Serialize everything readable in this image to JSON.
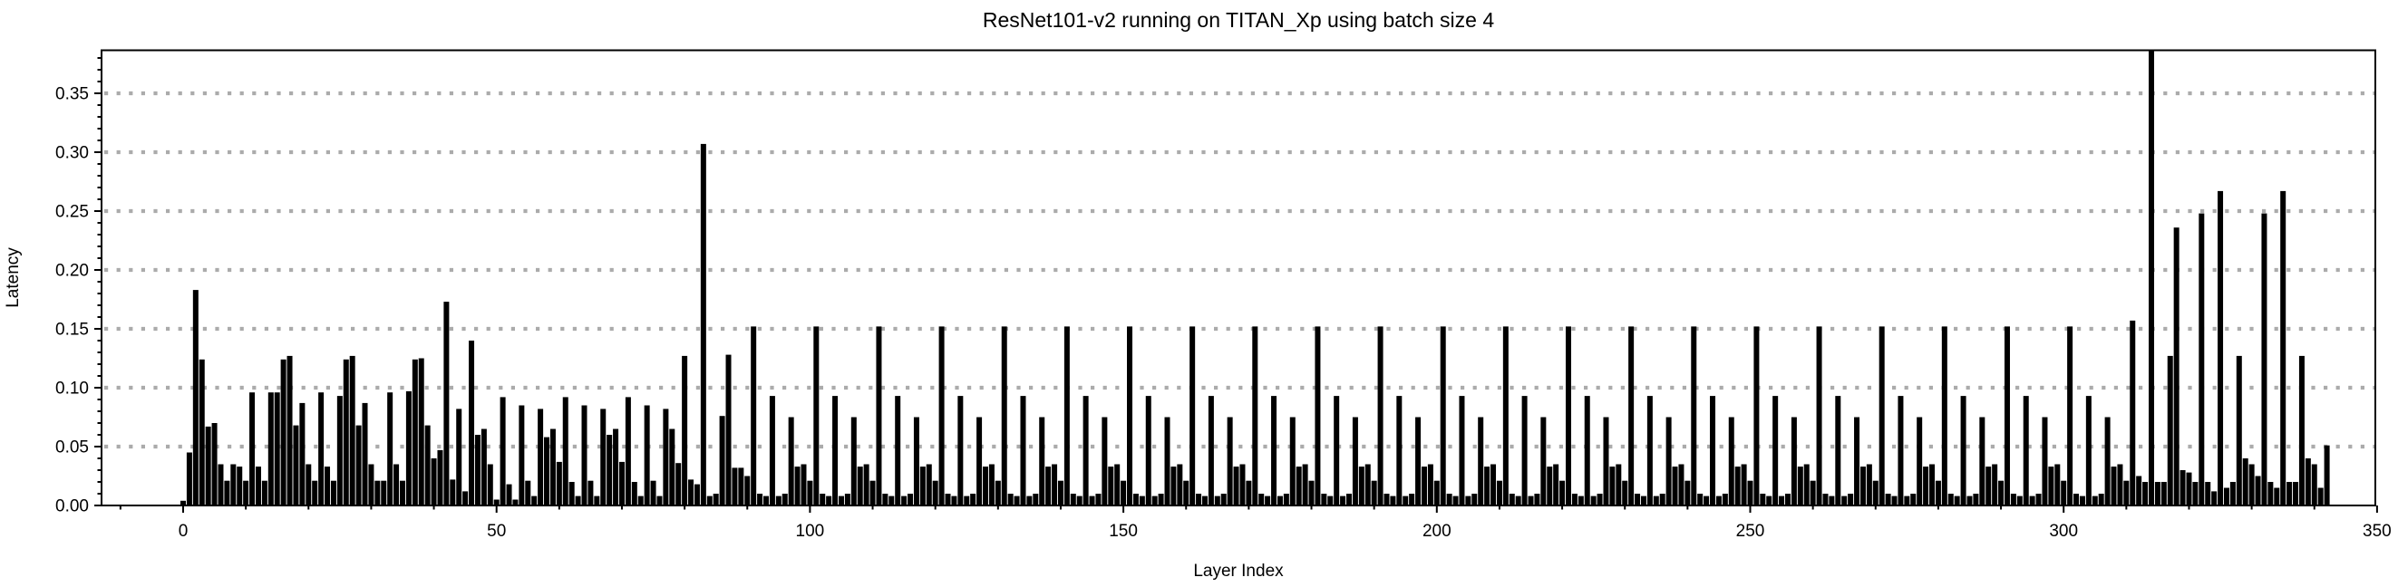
{
  "chart_data": {
    "type": "bar",
    "title": "ResNet101-v2 running on TITAN_Xp using batch size 4",
    "xlabel": "Layer Index",
    "ylabel": "Latency",
    "xlim": [
      -13,
      350.5
    ],
    "ylim": [
      0,
      0.3865
    ],
    "x_ticks": [
      0,
      50,
      100,
      150,
      200,
      250,
      300,
      350
    ],
    "x_tick_labels": [
      "0",
      "50",
      "100",
      "150",
      "200",
      "250",
      "300",
      "350"
    ],
    "x_minor_step": 10,
    "y_ticks": [
      0.0,
      0.05,
      0.1,
      0.15,
      0.2,
      0.25,
      0.3,
      0.35
    ],
    "y_tick_labels": [
      "0.00",
      "0.05",
      "0.10",
      "0.15",
      "0.20",
      "0.25",
      "0.30",
      "0.35"
    ],
    "y_minor_step": 0.01,
    "gridlines": [
      0.05,
      0.1,
      0.15,
      0.2,
      0.25,
      0.3,
      0.35
    ],
    "grid_style": "horizontal-dotted",
    "legend": "none",
    "colors": {
      "bar": "#000000",
      "grid": "#ababab",
      "axis": "#000000",
      "background": "#ffffff",
      "text": "#000000"
    },
    "x_start_index": 0,
    "values": [
      0.004,
      0.045,
      0.183,
      0.124,
      0.067,
      0.07,
      0.035,
      0.021,
      0.035,
      0.033,
      0.021,
      0.096,
      0.033,
      0.021,
      0.096,
      0.096,
      0.124,
      0.127,
      0.068,
      0.087,
      0.035,
      0.021,
      0.096,
      0.033,
      0.021,
      0.093,
      0.124,
      0.127,
      0.068,
      0.087,
      0.035,
      0.021,
      0.021,
      0.096,
      0.035,
      0.021,
      0.097,
      0.124,
      0.125,
      0.068,
      0.04,
      0.047,
      0.173,
      0.022,
      0.082,
      0.012,
      0.14,
      0.06,
      0.065,
      0.035,
      0.005,
      0.092,
      0.018,
      0.005,
      0.085,
      0.021,
      0.008,
      0.082,
      0.058,
      0.065,
      0.037,
      0.092,
      0.02,
      0.008,
      0.085,
      0.021,
      0.008,
      0.082,
      0.06,
      0.065,
      0.037,
      0.092,
      0.02,
      0.008,
      0.085,
      0.021,
      0.008,
      0.082,
      0.065,
      0.036,
      0.127,
      0.022,
      0.018,
      0.307,
      0.008,
      0.01,
      0.076,
      0.128,
      0.032,
      0.032,
      0.025,
      0.152,
      0.01,
      0.008,
      0.093,
      0.008,
      0.01,
      0.075,
      0.033,
      0.035,
      0.021,
      0.152,
      0.01,
      0.008,
      0.093,
      0.008,
      0.01,
      0.075,
      0.033,
      0.035,
      0.021,
      0.152,
      0.01,
      0.008,
      0.093,
      0.008,
      0.01,
      0.075,
      0.033,
      0.035,
      0.021,
      0.152,
      0.01,
      0.008,
      0.093,
      0.008,
      0.01,
      0.075,
      0.033,
      0.035,
      0.021,
      0.152,
      0.01,
      0.008,
      0.093,
      0.008,
      0.01,
      0.075,
      0.033,
      0.035,
      0.021,
      0.152,
      0.01,
      0.008,
      0.093,
      0.008,
      0.01,
      0.075,
      0.033,
      0.035,
      0.021,
      0.152,
      0.01,
      0.008,
      0.093,
      0.008,
      0.01,
      0.075,
      0.033,
      0.035,
      0.021,
      0.152,
      0.01,
      0.008,
      0.093,
      0.008,
      0.01,
      0.075,
      0.033,
      0.035,
      0.021,
      0.152,
      0.01,
      0.008,
      0.093,
      0.008,
      0.01,
      0.075,
      0.033,
      0.035,
      0.021,
      0.152,
      0.01,
      0.008,
      0.093,
      0.008,
      0.01,
      0.075,
      0.033,
      0.035,
      0.021,
      0.152,
      0.01,
      0.008,
      0.093,
      0.008,
      0.01,
      0.075,
      0.033,
      0.035,
      0.021,
      0.152,
      0.01,
      0.008,
      0.093,
      0.008,
      0.01,
      0.075,
      0.033,
      0.035,
      0.021,
      0.152,
      0.01,
      0.008,
      0.093,
      0.008,
      0.01,
      0.075,
      0.033,
      0.035,
      0.021,
      0.152,
      0.01,
      0.008,
      0.093,
      0.008,
      0.01,
      0.075,
      0.033,
      0.035,
      0.021,
      0.152,
      0.01,
      0.008,
      0.093,
      0.008,
      0.01,
      0.075,
      0.033,
      0.035,
      0.021,
      0.152,
      0.01,
      0.008,
      0.093,
      0.008,
      0.01,
      0.075,
      0.033,
      0.035,
      0.021,
      0.152,
      0.01,
      0.008,
      0.093,
      0.008,
      0.01,
      0.075,
      0.033,
      0.035,
      0.021,
      0.152,
      0.01,
      0.008,
      0.093,
      0.008,
      0.01,
      0.075,
      0.033,
      0.035,
      0.021,
      0.152,
      0.01,
      0.008,
      0.093,
      0.008,
      0.01,
      0.075,
      0.033,
      0.035,
      0.021,
      0.152,
      0.01,
      0.008,
      0.093,
      0.008,
      0.01,
      0.075,
      0.033,
      0.035,
      0.021,
      0.152,
      0.01,
      0.008,
      0.093,
      0.008,
      0.01,
      0.075,
      0.033,
      0.035,
      0.021,
      0.152,
      0.01,
      0.008,
      0.093,
      0.008,
      0.01,
      0.075,
      0.033,
      0.035,
      0.021,
      0.157,
      0.025,
      0.02,
      0.39,
      0.02,
      0.02,
      0.127,
      0.236,
      0.03,
      0.028,
      0.02,
      0.248,
      0.02,
      0.012,
      0.267,
      0.015,
      0.02,
      0.127,
      0.04,
      0.035,
      0.025,
      0.248,
      0.02,
      0.015,
      0.267,
      0.02,
      0.02,
      0.127,
      0.04,
      0.035,
      0.015,
      0.051
    ]
  }
}
